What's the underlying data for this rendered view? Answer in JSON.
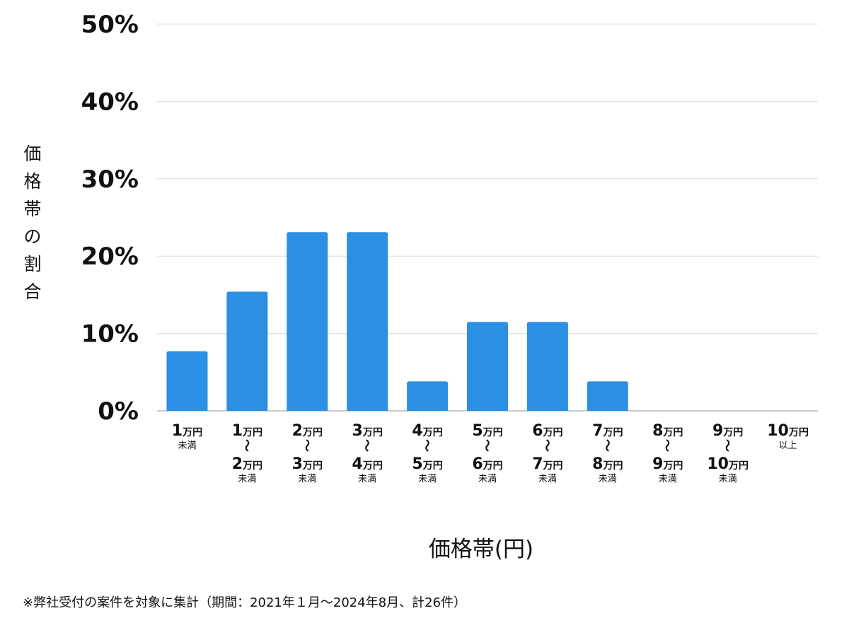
{
  "chart_data": {
    "type": "bar",
    "ylabel": "価格帯の割合",
    "xlabel": "価格帯(円)",
    "ylim": [
      0,
      50
    ],
    "yticks": [
      "0%",
      "10%",
      "20%",
      "30%",
      "40%",
      "50%"
    ],
    "ytick_values": [
      0,
      10,
      20,
      30,
      40,
      50
    ],
    "grid": true,
    "bar_color": "#2b8fe3",
    "categories": [
      {
        "lines": [
          {
            "num": "1",
            "unit": "万円"
          },
          {
            "small": "未満"
          }
        ]
      },
      {
        "lines": [
          {
            "num": "1",
            "unit": "万円"
          },
          {
            "tilde": "〜"
          },
          {
            "num": "2",
            "unit": "万円"
          },
          {
            "small": "未満"
          }
        ]
      },
      {
        "lines": [
          {
            "num": "2",
            "unit": "万円"
          },
          {
            "tilde": "〜"
          },
          {
            "num": "3",
            "unit": "万円"
          },
          {
            "small": "未満"
          }
        ]
      },
      {
        "lines": [
          {
            "num": "3",
            "unit": "万円"
          },
          {
            "tilde": "〜"
          },
          {
            "num": "4",
            "unit": "万円"
          },
          {
            "small": "未満"
          }
        ]
      },
      {
        "lines": [
          {
            "num": "4",
            "unit": "万円"
          },
          {
            "tilde": "〜"
          },
          {
            "num": "5",
            "unit": "万円"
          },
          {
            "small": "未満"
          }
        ]
      },
      {
        "lines": [
          {
            "num": "5",
            "unit": "万円"
          },
          {
            "tilde": "〜"
          },
          {
            "num": "6",
            "unit": "万円"
          },
          {
            "small": "未満"
          }
        ]
      },
      {
        "lines": [
          {
            "num": "6",
            "unit": "万円"
          },
          {
            "tilde": "〜"
          },
          {
            "num": "7",
            "unit": "万円"
          },
          {
            "small": "未満"
          }
        ]
      },
      {
        "lines": [
          {
            "num": "7",
            "unit": "万円"
          },
          {
            "tilde": "〜"
          },
          {
            "num": "8",
            "unit": "万円"
          },
          {
            "small": "未満"
          }
        ]
      },
      {
        "lines": [
          {
            "num": "8",
            "unit": "万円"
          },
          {
            "tilde": "〜"
          },
          {
            "num": "9",
            "unit": "万円"
          },
          {
            "small": "未満"
          }
        ]
      },
      {
        "lines": [
          {
            "num": "9",
            "unit": "万円"
          },
          {
            "tilde": "〜"
          },
          {
            "num": "10",
            "unit": "万円"
          },
          {
            "small": "未満"
          }
        ]
      },
      {
        "lines": [
          {
            "num": "10",
            "unit": "万円"
          },
          {
            "small": "以上"
          }
        ]
      }
    ],
    "values": [
      7.7,
      15.4,
      23.1,
      23.1,
      3.8,
      11.5,
      11.5,
      3.8,
      0,
      0,
      0
    ]
  },
  "footnote": "※弊社受付の案件を対象に集計（期間：2021年１月〜2024年8月、計26件）"
}
